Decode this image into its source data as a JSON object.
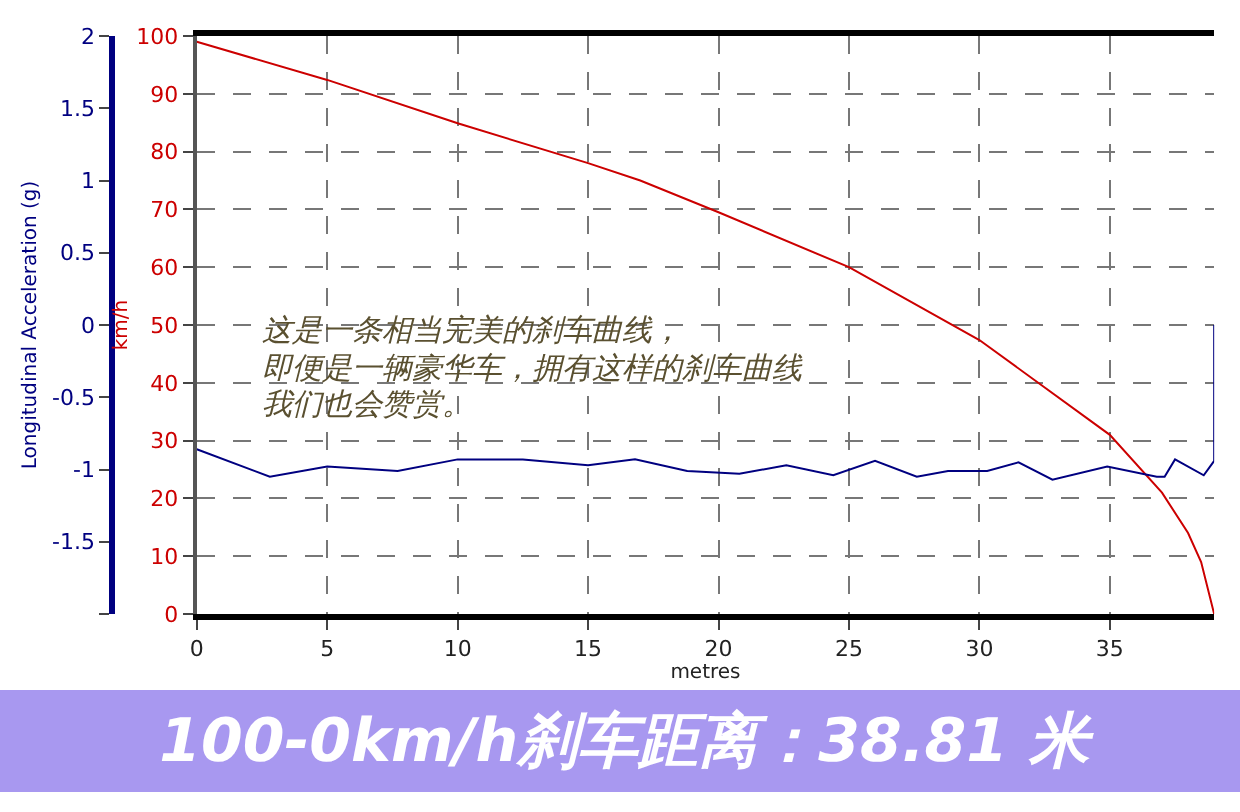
{
  "chart_data": {
    "type": "line",
    "title": "100-0km/h刹车距离：38.81 米",
    "xlabel": "metres",
    "ylabel": "km/h",
    "y2label": "Longitudinal Acceleration (g)",
    "annotations": [
      "这是一条相当完美的刹车曲线，",
      "即便是一辆豪华车，拥有这样的刹车曲线",
      "我们也会赞赏。"
    ],
    "series": [
      {
        "color": "#cc0000",
        "x": [
          0,
          5,
          10,
          15,
          17,
          20,
          25,
          30,
          35,
          37,
          38,
          38.5,
          39
        ],
        "values": [
          99,
          92.4,
          84.9,
          78,
          75,
          69.5,
          60,
          47.4,
          31,
          21,
          14,
          9,
          0
        ]
      },
      {
        "color": "#000080",
        "axis": "y2",
        "x": [
          0,
          2.8,
          5,
          7.7,
          10,
          12.5,
          15,
          16.8,
          18.8,
          20.8,
          22.6,
          24.4,
          26.0,
          27.6,
          28.8,
          30.3,
          31.5,
          32.8,
          34.9,
          36.8,
          37.1,
          37.5,
          38.6,
          39,
          39
        ],
        "values": [
          -0.86,
          -1.05,
          -0.98,
          -1.01,
          -0.93,
          -0.93,
          -0.97,
          -0.93,
          -1.01,
          -1.03,
          -0.97,
          -1.04,
          -0.94,
          -1.05,
          -1.01,
          -1.01,
          -0.95,
          -1.07,
          -0.98,
          -1.05,
          -1.05,
          -0.93,
          -1.04,
          -0.94,
          0.0
        ]
      }
    ],
    "xlim": [
      0,
      39
    ],
    "xticks": [
      0,
      5,
      10,
      15,
      20,
      25,
      30,
      35
    ],
    "ylim": [
      0,
      100
    ],
    "yticks": [
      0,
      10,
      20,
      30,
      40,
      50,
      60,
      70,
      80,
      90,
      100
    ],
    "y2lim": [
      -2,
      2
    ],
    "y2ticks": [
      {
        "value": -2,
        "label": null
      },
      -1.5,
      -1,
      -0.5,
      0,
      0.5,
      1,
      1.5,
      2
    ],
    "grid": true,
    "line_style": "solid",
    "marker": "none"
  }
}
